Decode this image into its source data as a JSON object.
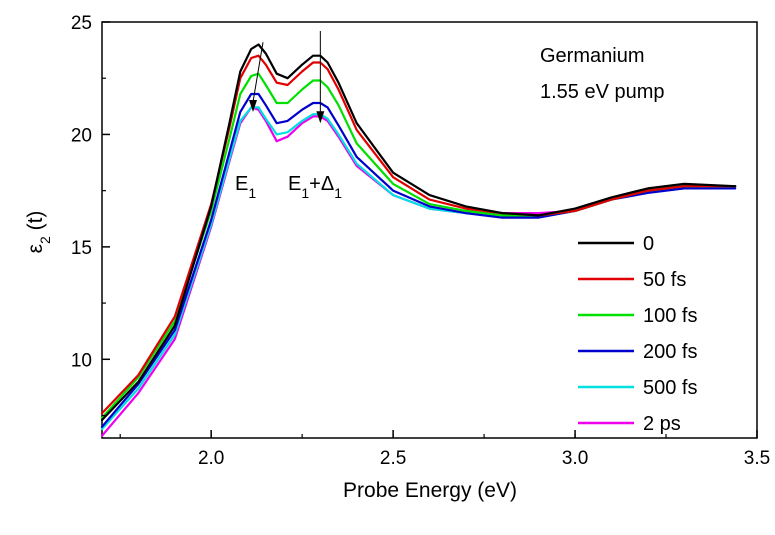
{
  "chart_data": {
    "type": "line",
    "annotation_title": [
      "Germanium",
      "1.55 eV pump"
    ],
    "xlabel": "Probe Energy (eV)",
    "ylabel": "ε2 (t)",
    "xlim": [
      1.7,
      3.5
    ],
    "ylim": [
      6.5,
      25
    ],
    "xticks": [
      2.0,
      2.5,
      3.0,
      3.5
    ],
    "yticks": [
      10,
      15,
      20,
      25
    ],
    "xtick_labels": [
      "2.0",
      "2.5",
      "3.0",
      "3.5"
    ],
    "ytick_labels": [
      "10",
      "15",
      "20",
      "25"
    ],
    "grid": false,
    "legend_placement": "bottom-right",
    "peak_labels": {
      "e1": {
        "base": "E",
        "sub": "1",
        "x": 2.12,
        "arrow_y": [
          24.1,
          21.0
        ]
      },
      "e1_delta": {
        "base": "E",
        "sub1": "1",
        "plus": "+Δ",
        "sub2": "1",
        "x": 2.3,
        "arrow_y": [
          24.6,
          20.5
        ]
      }
    },
    "series": [
      {
        "name": "0",
        "color": "#000000",
        "x": [
          1.7,
          1.8,
          1.9,
          2.0,
          2.05,
          2.08,
          2.11,
          2.13,
          2.15,
          2.18,
          2.21,
          2.25,
          2.28,
          2.3,
          2.32,
          2.35,
          2.4,
          2.5,
          2.6,
          2.7,
          2.8,
          2.9,
          3.0,
          3.1,
          3.2,
          3.3,
          3.44
        ],
        "y": [
          7.3,
          9.0,
          11.5,
          16.8,
          20.5,
          22.8,
          23.8,
          24.0,
          23.6,
          22.7,
          22.5,
          23.1,
          23.5,
          23.5,
          23.2,
          22.3,
          20.5,
          18.3,
          17.3,
          16.8,
          16.5,
          16.4,
          16.7,
          17.2,
          17.6,
          17.8,
          17.7
        ]
      },
      {
        "name": "50 fs",
        "color": "#e00000",
        "x": [
          1.7,
          1.8,
          1.9,
          2.0,
          2.05,
          2.08,
          2.11,
          2.13,
          2.15,
          2.18,
          2.21,
          2.25,
          2.28,
          2.3,
          2.32,
          2.35,
          2.4,
          2.5,
          2.6,
          2.7,
          2.8,
          2.9,
          3.0,
          3.1,
          3.2,
          3.3,
          3.44
        ],
        "y": [
          7.6,
          9.3,
          11.9,
          16.9,
          20.3,
          22.5,
          23.4,
          23.5,
          23.1,
          22.3,
          22.2,
          22.8,
          23.2,
          23.2,
          22.9,
          22.0,
          20.2,
          18.1,
          17.1,
          16.7,
          16.5,
          16.4,
          16.6,
          17.1,
          17.5,
          17.7,
          17.7
        ]
      },
      {
        "name": "100 fs",
        "color": "#00e000",
        "x": [
          1.7,
          1.8,
          1.9,
          2.0,
          2.05,
          2.08,
          2.11,
          2.13,
          2.15,
          2.18,
          2.21,
          2.25,
          2.28,
          2.3,
          2.32,
          2.35,
          2.4,
          2.5,
          2.6,
          2.7,
          2.8,
          2.9,
          3.0,
          3.1,
          3.2,
          3.3,
          3.44
        ],
        "y": [
          7.4,
          9.2,
          11.7,
          16.6,
          19.8,
          21.8,
          22.6,
          22.7,
          22.2,
          21.4,
          21.4,
          22.0,
          22.4,
          22.4,
          22.1,
          21.3,
          19.6,
          17.8,
          16.9,
          16.6,
          16.4,
          16.4,
          16.6,
          17.1,
          17.5,
          17.7,
          17.7
        ]
      },
      {
        "name": "200 fs",
        "color": "#0000cc",
        "x": [
          1.7,
          1.8,
          1.9,
          2.0,
          2.05,
          2.08,
          2.11,
          2.13,
          2.15,
          2.18,
          2.21,
          2.25,
          2.28,
          2.3,
          2.32,
          2.35,
          2.4,
          2.5,
          2.6,
          2.7,
          2.8,
          2.9,
          3.0,
          3.1,
          3.2,
          3.3,
          3.44
        ],
        "y": [
          7.0,
          8.9,
          11.3,
          16.2,
          19.2,
          21.0,
          21.8,
          21.8,
          21.3,
          20.5,
          20.6,
          21.1,
          21.4,
          21.4,
          21.2,
          20.4,
          19.0,
          17.5,
          16.8,
          16.5,
          16.3,
          16.3,
          16.6,
          17.1,
          17.4,
          17.6,
          17.6
        ]
      },
      {
        "name": "500 fs",
        "color": "#00e0e0",
        "x": [
          1.7,
          1.8,
          1.9,
          2.0,
          2.05,
          2.08,
          2.11,
          2.13,
          2.15,
          2.18,
          2.21,
          2.25,
          2.28,
          2.3,
          2.32,
          2.35,
          2.4,
          2.5,
          2.6,
          2.7,
          2.8,
          2.9,
          3.0,
          3.1,
          3.2,
          3.3,
          3.44
        ],
        "y": [
          6.9,
          8.7,
          11.1,
          16.0,
          18.9,
          20.6,
          21.2,
          21.2,
          20.7,
          20.0,
          20.1,
          20.6,
          20.9,
          20.9,
          20.7,
          20.0,
          18.7,
          17.3,
          16.7,
          16.5,
          16.4,
          16.4,
          16.6,
          17.1,
          17.5,
          17.7,
          17.7
        ]
      },
      {
        "name": "2 ps",
        "color": "#ee00ee",
        "x": [
          1.7,
          1.8,
          1.9,
          2.0,
          2.05,
          2.08,
          2.11,
          2.13,
          2.15,
          2.18,
          2.21,
          2.25,
          2.28,
          2.3,
          2.32,
          2.35,
          2.4,
          2.5,
          2.6,
          2.7,
          2.8,
          2.9,
          3.0,
          3.1,
          3.2,
          3.3,
          3.44
        ],
        "y": [
          6.6,
          8.5,
          10.9,
          15.9,
          18.8,
          20.5,
          21.2,
          21.1,
          20.6,
          19.7,
          19.9,
          20.5,
          20.8,
          20.8,
          20.6,
          19.9,
          18.6,
          17.3,
          16.7,
          16.5,
          16.5,
          16.5,
          16.6,
          17.1,
          17.5,
          17.7,
          17.7
        ]
      }
    ]
  }
}
